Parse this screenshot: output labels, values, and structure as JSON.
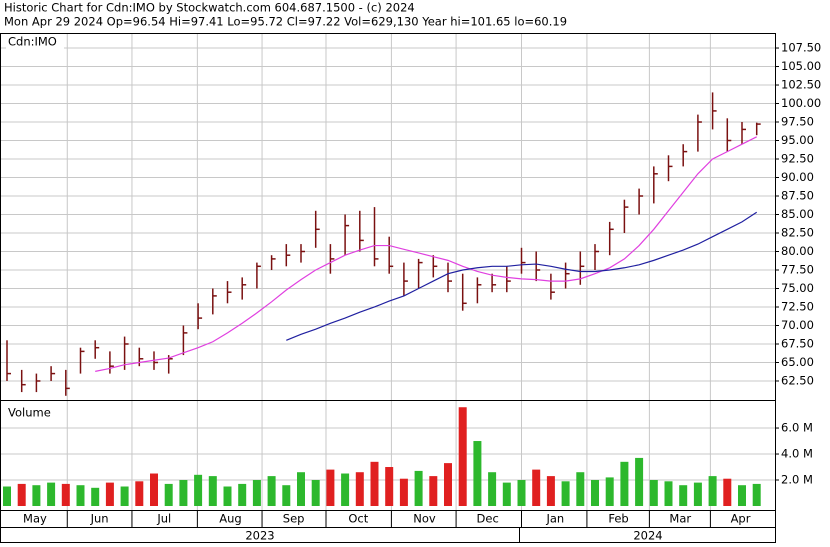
{
  "chart_data": {
    "type": "ohlc",
    "title": "Historic Chart for Cdn:IMO by Stockwatch.com 604.687.1500 - (c) 2024",
    "subtitle": "Mon Apr 29 2024   Op=96.54   Hi=97.41   Lo=95.72   Cl=97.22   Vol=629,130   Year hi=101.65   lo=60.19",
    "symbol": "Cdn:IMO",
    "volume_label": "Volume",
    "years": [
      "2023",
      "2024"
    ],
    "bar_color": "#7a1010",
    "up_color": "#2db82d",
    "down_color": "#e02020",
    "grid": true,
    "high": [
      68,
      64,
      63.5,
      64.5,
      64,
      67,
      68,
      66.5,
      68.5,
      67,
      66.5,
      66,
      70,
      73,
      75,
      76,
      76.5,
      78.5,
      79.5,
      81,
      81,
      85.5,
      81,
      85,
      85.5,
      86,
      82,
      78.5,
      79,
      79.5,
      78.5,
      77,
      76.5,
      77,
      78,
      80.5,
      80,
      77,
      78.5,
      80,
      81,
      84,
      87,
      88.5,
      91.5,
      93,
      94.5,
      98.5,
      101.5,
      98,
      97.5,
      97.41
    ],
    "low": [
      62.5,
      61,
      61,
      62.5,
      60.5,
      63.5,
      65.5,
      63.5,
      64,
      64.5,
      64,
      63.5,
      66,
      69.5,
      71.5,
      73,
      73.5,
      75,
      77.5,
      78,
      78.5,
      80.5,
      77,
      79.5,
      80,
      78,
      77,
      74,
      75,
      76.5,
      74.5,
      72,
      73,
      74.5,
      74.5,
      77,
      76,
      73.5,
      75,
      75.5,
      77.5,
      79.5,
      82.5,
      85,
      86.5,
      89.5,
      91.5,
      93.5,
      96.5,
      93.5,
      94.5,
      95.72
    ],
    "close": [
      63.5,
      62,
      62.5,
      63.5,
      61.5,
      66.5,
      67,
      64.5,
      67.5,
      65.5,
      65,
      65.5,
      69,
      71,
      74,
      74.5,
      75.5,
      78,
      79,
      79.5,
      80,
      83,
      79,
      83.5,
      81.5,
      79,
      78,
      76,
      78.5,
      78,
      76,
      73,
      75.5,
      75.5,
      76,
      78.5,
      77.5,
      74.5,
      77,
      78,
      80,
      83,
      86,
      87.5,
      90.5,
      91.5,
      93.5,
      97.5,
      99,
      95,
      96.5,
      97.22
    ],
    "series": [
      {
        "name": "MA short",
        "color": "#e040e0",
        "values": [
          null,
          null,
          null,
          null,
          null,
          null,
          63.8,
          64.2,
          64.7,
          65,
          65.3,
          65.6,
          66.3,
          67,
          67.8,
          69,
          70.3,
          71.7,
          73.2,
          74.8,
          76.2,
          77.5,
          78.5,
          79.5,
          80.2,
          80.8,
          80.8,
          80.3,
          79.8,
          79.3,
          78.8,
          78,
          77.3,
          76.8,
          76.5,
          76.3,
          76.2,
          76,
          76,
          76.3,
          77,
          77.8,
          79,
          80.8,
          83,
          85.5,
          88,
          90.5,
          92.5,
          93.5,
          94.5,
          95.5
        ]
      },
      {
        "name": "MA long",
        "color": "#2020a0",
        "values": [
          null,
          null,
          null,
          null,
          null,
          null,
          null,
          null,
          null,
          null,
          null,
          null,
          null,
          null,
          null,
          null,
          null,
          null,
          null,
          68,
          68.8,
          69.5,
          70.3,
          71,
          71.8,
          72.5,
          73.3,
          74,
          75,
          76,
          77,
          77.5,
          77.8,
          78,
          78,
          78.2,
          78.3,
          78,
          77.6,
          77.3,
          77.3,
          77.5,
          77.8,
          78.2,
          78.8,
          79.5,
          80.2,
          81,
          82,
          83,
          84,
          85.3
        ]
      }
    ],
    "volume": [
      1.5,
      1.7,
      1.6,
      1.8,
      1.7,
      1.6,
      1.4,
      1.8,
      1.5,
      1.9,
      2.5,
      1.7,
      2.0,
      2.4,
      2.3,
      1.5,
      1.7,
      2.0,
      2.3,
      1.6,
      2.6,
      2.0,
      2.8,
      2.5,
      2.6,
      3.4,
      3.0,
      2.1,
      2.7,
      2.3,
      3.3,
      7.6,
      5.0,
      2.6,
      1.8,
      2.0,
      2.8,
      2.3,
      1.9,
      2.6,
      2.0,
      2.2,
      3.4,
      3.7,
      2.0,
      1.9,
      1.6,
      1.8,
      2.3,
      2.1,
      1.6,
      1.7
    ],
    "ylim": [
      59.93,
      109.53
    ],
    "yticks": [
      {
        "value": 62.5,
        "label": "62.50"
      },
      {
        "value": 65,
        "label": "65.00"
      },
      {
        "value": 67.5,
        "label": "67.50"
      },
      {
        "value": 70,
        "label": "70.00"
      },
      {
        "value": 72.5,
        "label": "72.50"
      },
      {
        "value": 75,
        "label": "75.00"
      },
      {
        "value": 77.5,
        "label": "77.50"
      },
      {
        "value": 80,
        "label": "80.00"
      },
      {
        "value": 82.5,
        "label": "82.50"
      },
      {
        "value": 85,
        "label": "85.00"
      },
      {
        "value": 87.5,
        "label": "87.50"
      },
      {
        "value": 90,
        "label": "90.00"
      },
      {
        "value": 92.5,
        "label": "92.50"
      },
      {
        "value": 95,
        "label": "95.00"
      },
      {
        "value": 97.5,
        "label": "97.50"
      },
      {
        "value": 100,
        "label": "100.00"
      },
      {
        "value": 102.5,
        "label": "102.50"
      },
      {
        "value": 105,
        "label": "105.00"
      },
      {
        "value": 107.5,
        "label": "107.50"
      }
    ],
    "y2lim": [
      0,
      8.08
    ],
    "y2ticks": [
      {
        "value": 2,
        "label": "2.0 M"
      },
      {
        "value": 4,
        "label": "4.0 M"
      },
      {
        "value": 6,
        "label": "6.0 M"
      }
    ],
    "xticks": [
      {
        "value": 1.9,
        "label": "May"
      },
      {
        "value": 6.3,
        "label": "Jun"
      },
      {
        "value": 10.7,
        "label": "Jul"
      },
      {
        "value": 15.2,
        "label": "Aug"
      },
      {
        "value": 19.5,
        "label": "Sep"
      },
      {
        "value": 23.9,
        "label": "Oct"
      },
      {
        "value": 28.4,
        "label": "Nov"
      },
      {
        "value": 32.7,
        "label": "Dec"
      },
      {
        "value": 37.3,
        "label": "Jan"
      },
      {
        "value": 41.6,
        "label": "Feb"
      },
      {
        "value": 45.8,
        "label": "Mar"
      },
      {
        "value": 49.9,
        "label": "Apr"
      }
    ]
  }
}
